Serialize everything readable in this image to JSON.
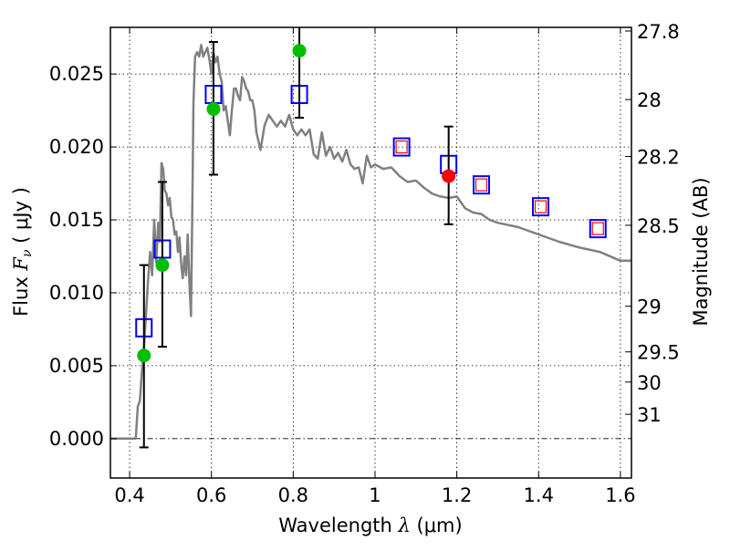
{
  "chart_data": {
    "type": "scatter",
    "title": "",
    "xlabel": "Wavelength  λ (μm)",
    "xlabel_parts": {
      "text": "Wavelength  ",
      "symbol": "λ",
      "unit": " (μm)"
    },
    "ylabel": "Flux  Fν  ( μJy )",
    "ylabel_parts": {
      "text": "Flux  ",
      "symbol": "F",
      "sub": "ν",
      "unit": "  ( μJy )"
    },
    "ylabel_right": "Magnitude (AB)",
    "xlim": [
      0.353,
      1.627
    ],
    "ylim": [
      -0.0027,
      0.0282
    ],
    "grid": true,
    "x_ticks": [
      {
        "value": 0.4,
        "label": "0.4"
      },
      {
        "value": 0.6,
        "label": "0.6"
      },
      {
        "value": 0.8,
        "label": "0.8"
      },
      {
        "value": 1.0,
        "label": "1"
      },
      {
        "value": 1.2,
        "label": "1.2"
      },
      {
        "value": 1.4,
        "label": "1.4"
      },
      {
        "value": 1.6,
        "label": "1.6"
      }
    ],
    "y_ticks": [
      {
        "value": 0.0,
        "label": "0.000"
      },
      {
        "value": 0.005,
        "label": "0.005"
      },
      {
        "value": 0.01,
        "label": "0.010"
      },
      {
        "value": 0.015,
        "label": "0.015"
      },
      {
        "value": 0.02,
        "label": "0.020"
      },
      {
        "value": 0.025,
        "label": "0.025"
      }
    ],
    "y_right_ticks": [
      {
        "flux": 0.02795,
        "label": "27.8"
      },
      {
        "flux": 0.02325,
        "label": "28"
      },
      {
        "flux": 0.01935,
        "label": "28.2"
      },
      {
        "flux": 0.01463,
        "label": "28.5"
      },
      {
        "flux": 0.00908,
        "label": "29"
      },
      {
        "flux": 0.00595,
        "label": "29.5"
      },
      {
        "flux": 0.00388,
        "label": "30"
      },
      {
        "flux": 0.00167,
        "label": "31"
      }
    ],
    "series": [
      {
        "name": "model-spectrum",
        "kind": "line",
        "color": "#808080",
        "x": [
          0.353,
          0.41,
          0.415,
          0.42,
          0.425,
          0.43,
          0.435,
          0.44,
          0.445,
          0.45,
          0.455,
          0.46,
          0.465,
          0.47,
          0.474,
          0.478,
          0.482,
          0.486,
          0.49,
          0.494,
          0.498,
          0.502,
          0.506,
          0.51,
          0.514,
          0.518,
          0.522,
          0.526,
          0.53,
          0.534,
          0.538,
          0.542,
          0.546,
          0.55,
          0.553,
          0.556,
          0.56,
          0.565,
          0.57,
          0.575,
          0.58,
          0.585,
          0.59,
          0.595,
          0.6,
          0.605,
          0.61,
          0.615,
          0.62,
          0.625,
          0.63,
          0.635,
          0.64,
          0.645,
          0.65,
          0.655,
          0.66,
          0.665,
          0.67,
          0.675,
          0.68,
          0.685,
          0.69,
          0.695,
          0.7,
          0.705,
          0.71,
          0.72,
          0.73,
          0.74,
          0.75,
          0.76,
          0.77,
          0.78,
          0.79,
          0.8,
          0.81,
          0.82,
          0.83,
          0.84,
          0.85,
          0.86,
          0.87,
          0.88,
          0.89,
          0.9,
          0.91,
          0.92,
          0.93,
          0.94,
          0.95,
          0.96,
          0.97,
          0.98,
          0.99,
          1.0,
          1.02,
          1.04,
          1.06,
          1.08,
          1.1,
          1.12,
          1.14,
          1.16,
          1.18,
          1.2,
          1.22,
          1.24,
          1.26,
          1.28,
          1.3,
          1.35,
          1.4,
          1.45,
          1.5,
          1.55,
          1.6,
          1.627
        ],
        "y": [
          0.0,
          0.0,
          0.0,
          0.0022,
          0.0026,
          0.0046,
          0.0062,
          0.0085,
          0.0108,
          0.0128,
          0.0112,
          0.015,
          0.0121,
          0.0148,
          0.0135,
          0.0189,
          0.0185,
          0.017,
          0.0168,
          0.016,
          0.0165,
          0.0152,
          0.015,
          0.014,
          0.0142,
          0.0128,
          0.0138,
          0.012,
          0.011,
          0.0125,
          0.0112,
          0.014,
          0.0108,
          0.0084,
          0.015,
          0.023,
          0.0262,
          0.0265,
          0.0262,
          0.027,
          0.0262,
          0.0265,
          0.0268,
          0.026,
          0.025,
          0.0265,
          0.0258,
          0.0262,
          0.025,
          0.0245,
          0.0225,
          0.0228,
          0.0218,
          0.0208,
          0.0225,
          0.024,
          0.024,
          0.0235,
          0.0232,
          0.0248,
          0.0245,
          0.024,
          0.0238,
          0.0232,
          0.0232,
          0.0225,
          0.021,
          0.0198,
          0.0215,
          0.0222,
          0.0218,
          0.0214,
          0.0218,
          0.0214,
          0.0222,
          0.0212,
          0.0208,
          0.0212,
          0.0208,
          0.0212,
          0.0195,
          0.0192,
          0.021,
          0.0194,
          0.02,
          0.0192,
          0.0196,
          0.019,
          0.0198,
          0.0188,
          0.0185,
          0.0186,
          0.0175,
          0.0194,
          0.0186,
          0.0188,
          0.0185,
          0.0186,
          0.018,
          0.0176,
          0.0177,
          0.0172,
          0.0168,
          0.0166,
          0.0165,
          0.0166,
          0.0158,
          0.0155,
          0.0154,
          0.015,
          0.0148,
          0.0145,
          0.014,
          0.0135,
          0.0131,
          0.0128,
          0.0122,
          0.0122
        ]
      },
      {
        "name": "observed-green",
        "kind": "points",
        "marker": "circle",
        "color": "#00bf00",
        "x": [
          0.435,
          0.48,
          0.605,
          0.815
        ],
        "y": [
          0.0057,
          0.0119,
          0.0226,
          0.0266
        ],
        "yerr_low": [
          -0.0006,
          0.0063,
          0.0181,
          0.022
        ],
        "yerr_high": [
          0.0119,
          0.0176,
          0.0272,
          0.03
        ]
      },
      {
        "name": "observed-red",
        "kind": "points",
        "marker": "circle",
        "color": "#ff0000",
        "x": [
          1.18
        ],
        "y": [
          0.018
        ],
        "yerr_low": [
          0.0147
        ],
        "yerr_high": [
          0.0214
        ]
      },
      {
        "name": "synthetic-blue",
        "kind": "points",
        "marker": "open-square",
        "color": "#0000ff",
        "x": [
          0.435,
          0.48,
          0.605,
          0.815,
          1.065,
          1.18,
          1.26,
          1.405,
          1.545
        ],
        "y": [
          0.0076,
          0.013,
          0.0236,
          0.0236,
          0.02,
          0.0188,
          0.0174,
          0.0159,
          0.0144
        ]
      },
      {
        "name": "synthetic-red",
        "kind": "points",
        "marker": "open-square-small",
        "color": "#ff0000",
        "x": [
          1.065,
          1.26,
          1.405,
          1.545
        ],
        "y": [
          0.02,
          0.0174,
          0.0159,
          0.0144
        ]
      }
    ],
    "zero_line": 0.0
  }
}
